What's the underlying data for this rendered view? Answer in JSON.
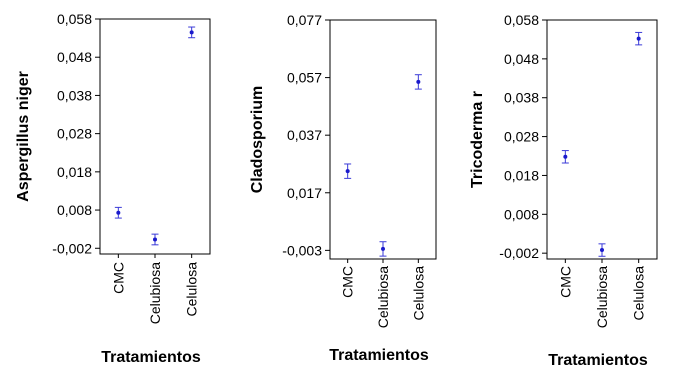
{
  "colors": {
    "point": "#1a1acc",
    "errorbar": "#3a3ad8",
    "frame": "#000000"
  },
  "chart_data": [
    {
      "type": "scatter",
      "title": "",
      "xlabel": "Tratamientos",
      "ylabel": "Aspergillus niger",
      "categories": [
        "CMC",
        "Celubiosa",
        "Celulosa"
      ],
      "ytick_labels": [
        "0,058",
        "0,048",
        "0,038",
        "0,028",
        "0,018",
        "0,008",
        "-0,002"
      ],
      "yticks": [
        0.058,
        0.048,
        0.038,
        0.028,
        0.018,
        0.008,
        -0.002
      ],
      "ylim": [
        -0.0035,
        0.058
      ],
      "means": [
        0.0073,
        0.0003,
        0.0545
      ],
      "err": [
        0.0014,
        0.0014,
        0.0014
      ],
      "grid": false
    },
    {
      "type": "scatter",
      "title": "",
      "xlabel": "Tratamientos",
      "ylabel": "Cladosporium",
      "categories": [
        "CMC",
        "Celubiosa",
        "Celulosa"
      ],
      "ytick_labels": [
        "0,077",
        "0,057",
        "0,037",
        "0,017",
        "-0,003"
      ],
      "yticks": [
        0.077,
        0.057,
        0.037,
        0.017,
        -0.003
      ],
      "ylim": [
        -0.006,
        0.077
      ],
      "means": [
        0.0245,
        -0.0025,
        0.0555
      ],
      "err": [
        0.0025,
        0.0025,
        0.0025
      ],
      "grid": false
    },
    {
      "type": "scatter",
      "title": "",
      "xlabel": "Tratamientos",
      "ylabel": "Tricoderma r",
      "categories": [
        "CMC",
        "Celubiosa",
        "Celulosa"
      ],
      "ytick_labels": [
        "0,058",
        "0,048",
        "0,038",
        "0,028",
        "0,018",
        "0,008",
        "-0,002"
      ],
      "yticks": [
        0.058,
        0.048,
        0.038,
        0.028,
        0.018,
        0.008,
        -0.002
      ],
      "ylim": [
        -0.0035,
        0.058
      ],
      "means": [
        0.0228,
        -0.0012,
        0.0532
      ],
      "err": [
        0.0016,
        0.0016,
        0.0016
      ],
      "grid": false
    }
  ]
}
